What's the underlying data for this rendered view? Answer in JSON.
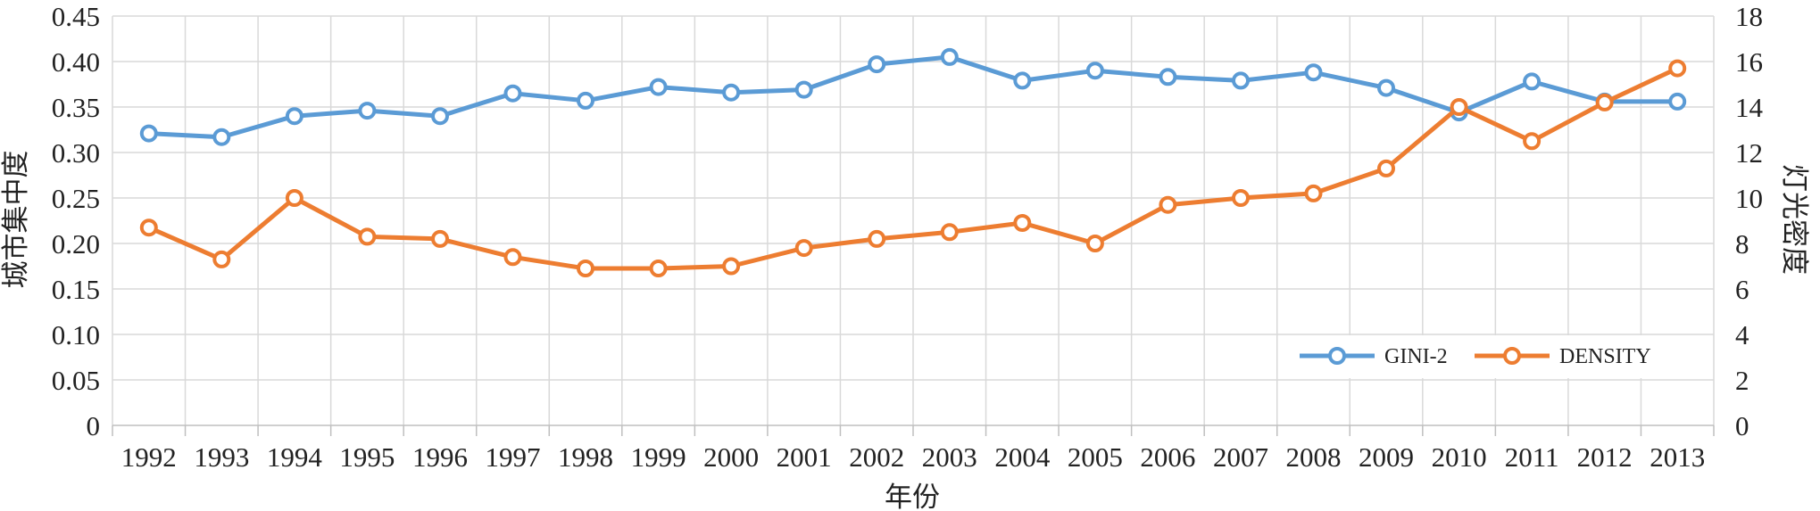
{
  "chart_data": {
    "type": "line",
    "categories": [
      "1992",
      "1993",
      "1994",
      "1995",
      "1996",
      "1997",
      "1998",
      "1999",
      "2000",
      "2001",
      "2002",
      "2003",
      "2004",
      "2005",
      "2006",
      "2007",
      "2008",
      "2009",
      "2010",
      "2011",
      "2012",
      "2013"
    ],
    "series": [
      {
        "name": "GINI-2",
        "axis": "left",
        "color": "#5b9bd5",
        "values": [
          0.321,
          0.317,
          0.34,
          0.346,
          0.34,
          0.365,
          0.357,
          0.372,
          0.366,
          0.369,
          0.397,
          0.405,
          0.379,
          0.39,
          0.383,
          0.379,
          0.388,
          0.371,
          0.344,
          0.378,
          0.356,
          0.356
        ]
      },
      {
        "name": "DENSITY",
        "axis": "right",
        "color": "#ed7d31",
        "values": [
          8.7,
          7.3,
          10.0,
          8.3,
          8.2,
          7.4,
          6.9,
          6.9,
          7.0,
          7.8,
          8.2,
          8.5,
          8.9,
          8.0,
          9.7,
          10.0,
          10.2,
          11.3,
          14.0,
          12.5,
          14.2,
          15.7
        ]
      }
    ],
    "y_left": {
      "label": "城市集中度",
      "ylim": [
        0,
        0.45
      ],
      "ticks": [
        "0",
        "0.05",
        "0.10",
        "0.15",
        "0.20",
        "0.25",
        "0.30",
        "0.35",
        "0.40",
        "0.45"
      ]
    },
    "y_right": {
      "label": "灯光密度",
      "ylim": [
        0,
        18
      ],
      "ticks": [
        "0",
        "2",
        "4",
        "6",
        "8",
        "10",
        "12",
        "14",
        "16",
        "18"
      ]
    },
    "xlabel": "年份",
    "grid": true,
    "legend_position": "bottom-right"
  }
}
